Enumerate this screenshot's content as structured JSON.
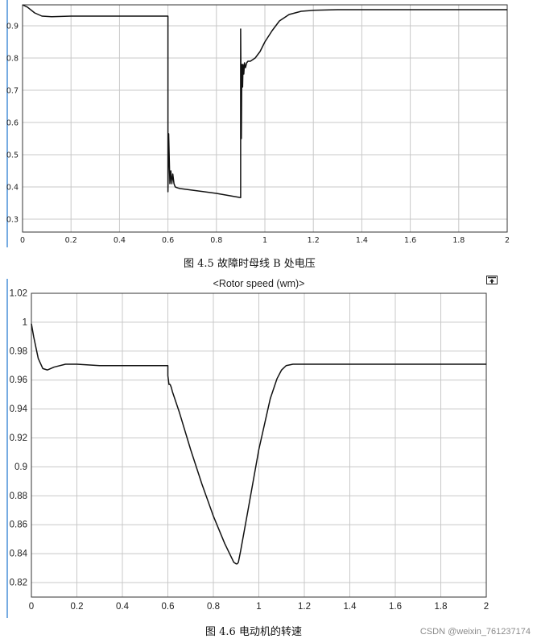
{
  "figures": [
    {
      "caption": "图 4.5  故障时母线 B 处电压",
      "chart_data": {
        "type": "line",
        "title": "",
        "xlabel": "",
        "ylabel": "",
        "xlim": [
          0,
          2
        ],
        "ylim": [
          0.26,
          0.965
        ],
        "xticks": [
          0,
          0.2,
          0.4,
          0.6,
          0.8,
          1,
          1.2,
          1.4,
          1.6,
          1.8,
          2
        ],
        "yticks": [
          0.3,
          0.4,
          0.5,
          0.6,
          0.7,
          0.8,
          0.9
        ],
        "xtick_labels": [
          "0",
          "0.2",
          "0.4",
          "0.6",
          "0.8",
          "1",
          "1.2",
          "1.4",
          "1.6",
          "1.8",
          "2"
        ],
        "ytick_labels": [
          "0.3",
          "0.4",
          "0.5",
          "0.6",
          "0.7",
          "0.8",
          "0.9"
        ],
        "grid": true,
        "series": [
          {
            "x": [
              0,
              0.02,
              0.05,
              0.08,
              0.12,
              0.2,
              0.3,
              0.4,
              0.5,
              0.6,
              0.6,
              0.603,
              0.608,
              0.612,
              0.616,
              0.62,
              0.625,
              0.63,
              0.64,
              0.65,
              0.7,
              0.8,
              0.9,
              0.9,
              0.903,
              0.905,
              0.908,
              0.91,
              0.913,
              0.916,
              0.92,
              0.925,
              0.93,
              0.94,
              0.96,
              0.98,
              1.0,
              1.03,
              1.06,
              1.1,
              1.15,
              1.2,
              1.3,
              1.4,
              1.6,
              1.8,
              2.0
            ],
            "y": [
              0.965,
              0.958,
              0.94,
              0.93,
              0.928,
              0.93,
              0.93,
              0.93,
              0.93,
              0.93,
              0.385,
              0.565,
              0.41,
              0.45,
              0.41,
              0.44,
              0.41,
              0.4,
              0.397,
              0.395,
              0.39,
              0.38,
              0.367,
              0.89,
              0.55,
              0.78,
              0.71,
              0.78,
              0.75,
              0.785,
              0.77,
              0.785,
              0.79,
              0.79,
              0.8,
              0.82,
              0.85,
              0.885,
              0.915,
              0.935,
              0.945,
              0.948,
              0.95,
              0.95,
              0.95,
              0.95,
              0.95
            ]
          }
        ]
      }
    },
    {
      "caption": "图 4.6  电动机的转速",
      "chart_data": {
        "type": "line",
        "title": "<Rotor speed (wm)>",
        "xlabel": "",
        "ylabel": "",
        "xlim": [
          0,
          2
        ],
        "ylim": [
          0.81,
          1.02
        ],
        "xticks": [
          0,
          0.2,
          0.4,
          0.6,
          0.8,
          1,
          1.2,
          1.4,
          1.6,
          1.8,
          2
        ],
        "yticks": [
          0.82,
          0.84,
          0.86,
          0.88,
          0.9,
          0.92,
          0.94,
          0.96,
          0.98,
          1,
          1.02
        ],
        "xtick_labels": [
          "0",
          "0.2",
          "0.4",
          "0.6",
          "0.8",
          "1",
          "1.2",
          "1.4",
          "1.6",
          "1.8",
          "2"
        ],
        "ytick_labels": [
          "0.82",
          "0.84",
          "0.86",
          "0.88",
          "0.9",
          "0.92",
          "0.94",
          "0.96",
          "0.98",
          "1",
          "1.02"
        ],
        "grid": true,
        "series": [
          {
            "x": [
              0,
              0.01,
              0.03,
              0.05,
              0.07,
              0.1,
              0.15,
              0.2,
              0.3,
              0.4,
              0.5,
              0.6,
              0.6,
              0.605,
              0.61,
              0.615,
              0.62,
              0.65,
              0.7,
              0.75,
              0.8,
              0.85,
              0.89,
              0.9,
              0.905,
              0.91,
              0.92,
              0.95,
              1.0,
              1.05,
              1.08,
              1.1,
              1.12,
              1.15,
              1.2,
              1.3,
              1.5,
              1.7,
              2.0
            ],
            "y": [
              0.999,
              0.99,
              0.975,
              0.968,
              0.967,
              0.969,
              0.971,
              0.971,
              0.97,
              0.97,
              0.97,
              0.97,
              0.963,
              0.957,
              0.957,
              0.955,
              0.952,
              0.938,
              0.912,
              0.888,
              0.866,
              0.847,
              0.834,
              0.833,
              0.833,
              0.834,
              0.842,
              0.868,
              0.912,
              0.947,
              0.961,
              0.967,
              0.97,
              0.971,
              0.971,
              0.971,
              0.971,
              0.971,
              0.971
            ]
          }
        ]
      }
    }
  ],
  "icons": {
    "top_right": "scope-autoscale-icon"
  },
  "watermark": "CSDN @weixin_761237174"
}
